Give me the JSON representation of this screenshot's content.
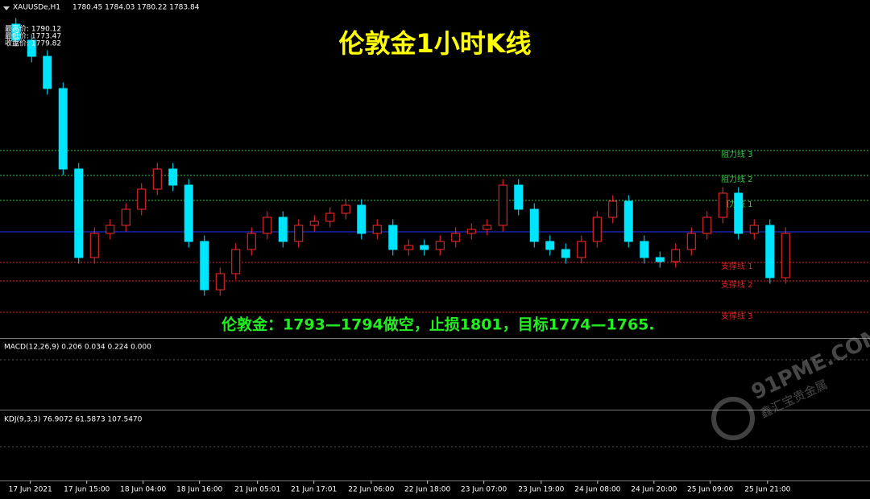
{
  "header": {
    "symbol": "XAUUSDe,H1",
    "ohlc": "1780.45 1784.03 1780.22 1783.84",
    "info": [
      "最高价: 1790.12",
      "最低价: 1773.47",
      "收盘价: 1779.82"
    ]
  },
  "title": "伦敦金1小时K线",
  "annotation": "伦敦金：1793—1794做空，止损1801，目标1774—1765.",
  "watermark": {
    "site": "91PME.COM",
    "name": "鑫汇宝贵金属"
  },
  "chart_data": {
    "type": "candlestick",
    "ylim": [
      1758,
      1842
    ],
    "xlim": [
      -0.5,
      54
    ],
    "up_color": "#ff2a2a",
    "down_color": "#00e5ff",
    "open": [
      1836,
      1832,
      1828,
      1820,
      1800,
      1778,
      1784,
      1786,
      1790,
      1795,
      1800,
      1796,
      1782,
      1770,
      1774,
      1780,
      1784,
      1788,
      1782,
      1786,
      1787,
      1789,
      1791,
      1784,
      1786,
      1780,
      1781,
      1780,
      1782,
      1784,
      1785,
      1786,
      1796,
      1790,
      1782,
      1780,
      1778,
      1782,
      1788,
      1792,
      1782,
      1778,
      1777,
      1780,
      1784,
      1788,
      1794,
      1784,
      1786,
      1773
    ],
    "high": [
      1837.5,
      1833.5,
      1829.5,
      1821.5,
      1801.5,
      1785.5,
      1787.5,
      1791.5,
      1796.5,
      1801.5,
      1801.5,
      1797.5,
      1783.5,
      1775.5,
      1781.5,
      1785.5,
      1789.5,
      1789.5,
      1787.5,
      1788.5,
      1790.5,
      1792.5,
      1792.5,
      1787.5,
      1787.5,
      1782.5,
      1782.5,
      1783.5,
      1785.5,
      1786.5,
      1787.5,
      1797.5,
      1797.5,
      1791.5,
      1783.5,
      1781.5,
      1783.5,
      1789.5,
      1793.5,
      1793.5,
      1783.5,
      1779.5,
      1781.5,
      1785.5,
      1789.5,
      1795.5,
      1795.5,
      1787.5,
      1787.5,
      1785.5
    ],
    "low": [
      1830.5,
      1826.5,
      1818.5,
      1798.5,
      1776.5,
      1776.5,
      1782.5,
      1784.5,
      1788.5,
      1793.5,
      1794.5,
      1780.5,
      1768.5,
      1768.5,
      1772.5,
      1778.5,
      1782.5,
      1780.5,
      1780.5,
      1784.5,
      1785.5,
      1787.5,
      1782.5,
      1782.5,
      1778.5,
      1778.5,
      1778.5,
      1778.5,
      1780.5,
      1782.5,
      1783.5,
      1784.5,
      1788.5,
      1780.5,
      1778.5,
      1776.5,
      1776.5,
      1780.5,
      1786.5,
      1780.5,
      1776.5,
      1775.5,
      1775.5,
      1778.5,
      1782.5,
      1786.5,
      1782.5,
      1782.5,
      1771.5,
      1771.5
    ],
    "close": [
      1832,
      1828,
      1820,
      1800,
      1778,
      1784,
      1786,
      1790,
      1795,
      1800,
      1796,
      1782,
      1770,
      1774,
      1780,
      1784,
      1788,
      1782,
      1786,
      1787,
      1789,
      1791,
      1784,
      1786,
      1780,
      1781,
      1780,
      1782,
      1784,
      1785,
      1786,
      1796,
      1790,
      1782,
      1780,
      1778,
      1782,
      1788,
      1792,
      1782,
      1778,
      1777,
      1780,
      1784,
      1788,
      1794,
      1784,
      1786,
      1773,
      1784
    ],
    "xticks": [
      {
        "value": 0.92,
        "label": "17 Jun 2021"
      },
      {
        "value": 4.51,
        "label": "17 Jun 15:00"
      },
      {
        "value": 8.1,
        "label": "18 Jun 04:00"
      },
      {
        "value": 11.69,
        "label": "18 Jun 16:00"
      },
      {
        "value": 15.38,
        "label": "21 Jun 05:01"
      },
      {
        "value": 18.97,
        "label": "21 Jun 17:01"
      },
      {
        "value": 22.62,
        "label": "22 Jun 06:00"
      },
      {
        "value": 26.2,
        "label": "22 Jun 18:00"
      },
      {
        "value": 29.79,
        "label": "23 Jun 07:00"
      },
      {
        "value": 33.44,
        "label": "23 Jun 19:00"
      },
      {
        "value": 37.03,
        "label": "24 Jun 08:00"
      },
      {
        "value": 40.62,
        "label": "24 Jun 20:00"
      },
      {
        "value": 44.2,
        "label": "25 Jun 09:00"
      },
      {
        "value": 47.85,
        "label": "25 Jun 21:00"
      }
    ],
    "levels": [
      {
        "label": "阻力线 3",
        "value": 1804.6,
        "color": "#2ecc40"
      },
      {
        "label": "阻力线 2",
        "value": 1798.4,
        "color": "#2ecc40"
      },
      {
        "label": "阻力线 1",
        "value": 1792.2,
        "color": "#2ecc40"
      },
      {
        "label": "支撑线 1",
        "value": 1776.8,
        "color": "#e02020"
      },
      {
        "label": "支撑线 2",
        "value": 1772.2,
        "color": "#e02020"
      },
      {
        "label": "支撑线 3",
        "value": 1764.4,
        "color": "#e02020"
      }
    ],
    "price_line": {
      "value": 1784.4,
      "color": "#2233ff"
    }
  },
  "indicators": {
    "macd": "MACD(12,26,9) 0.206 0.034 0.224 0.000",
    "kdj": "KDJ(9,3,3) 76.9072 61.5873 107.5470"
  }
}
